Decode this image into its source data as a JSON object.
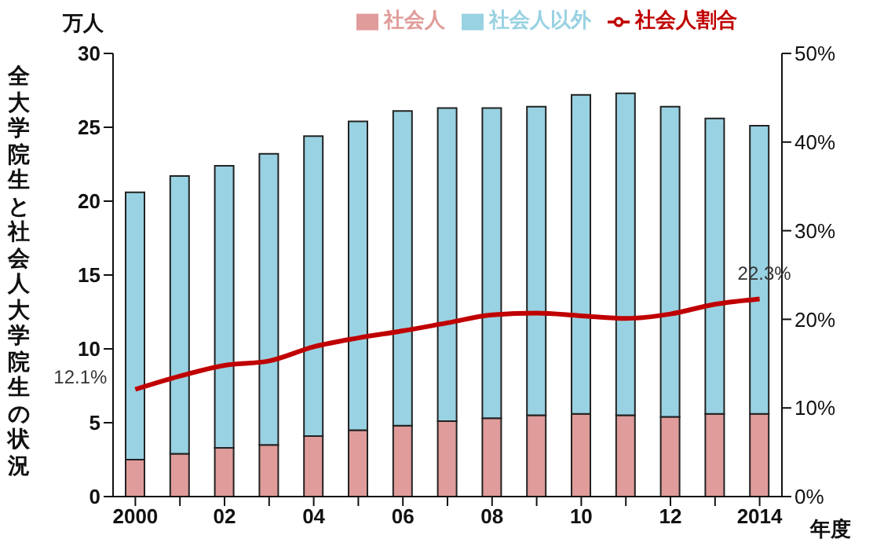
{
  "chart_data": {
    "type": "bar",
    "title": "全大学院生と社会人大学院生の状況",
    "ylabel": "万人",
    "xlabel": "年度",
    "categories": [
      "2000",
      null,
      "02",
      null,
      "04",
      null,
      "06",
      null,
      "08",
      null,
      "10",
      null,
      "12",
      null,
      "2014"
    ],
    "stacked": true,
    "legend": "top",
    "grid": false,
    "ylim": [
      0,
      30
    ],
    "yticks": [
      0,
      5,
      10,
      15,
      20,
      25,
      30
    ],
    "y2lim": [
      0,
      50
    ],
    "y2ticks": [
      {
        "value": 0,
        "label": "0%"
      },
      {
        "value": 10,
        "label": "10%"
      },
      {
        "value": 20,
        "label": "20%"
      },
      {
        "value": 30,
        "label": "30%"
      },
      {
        "value": 40,
        "label": "40%"
      },
      {
        "value": 50,
        "label": "50%"
      }
    ],
    "series": [
      {
        "name": "社会人",
        "color": "#e09c9a",
        "values": [
          2.5,
          2.9,
          3.3,
          3.5,
          4.1,
          4.5,
          4.8,
          5.1,
          5.3,
          5.5,
          5.6,
          5.5,
          5.4,
          5.6,
          5.6
        ]
      },
      {
        "name": "社会人以外",
        "color": "#99d2e2",
        "values": [
          18.1,
          18.8,
          19.1,
          19.7,
          20.3,
          20.9,
          21.3,
          21.2,
          21.0,
          20.9,
          21.6,
          21.8,
          21.0,
          20.0,
          19.5
        ]
      },
      {
        "name": "社会人割合",
        "type": "line",
        "axis": "y2",
        "color": "#c00000",
        "marker": "none",
        "line_style": "solid",
        "values": [
          12.1,
          13.6,
          14.8,
          15.3,
          16.9,
          17.9,
          18.7,
          19.6,
          20.5,
          20.7,
          20.4,
          20.1,
          20.6,
          21.7,
          22.3
        ],
        "value_labels": [
          "12.1%",
          null,
          null,
          null,
          null,
          null,
          null,
          null,
          null,
          null,
          null,
          null,
          null,
          null,
          "22.3%"
        ]
      }
    ]
  }
}
